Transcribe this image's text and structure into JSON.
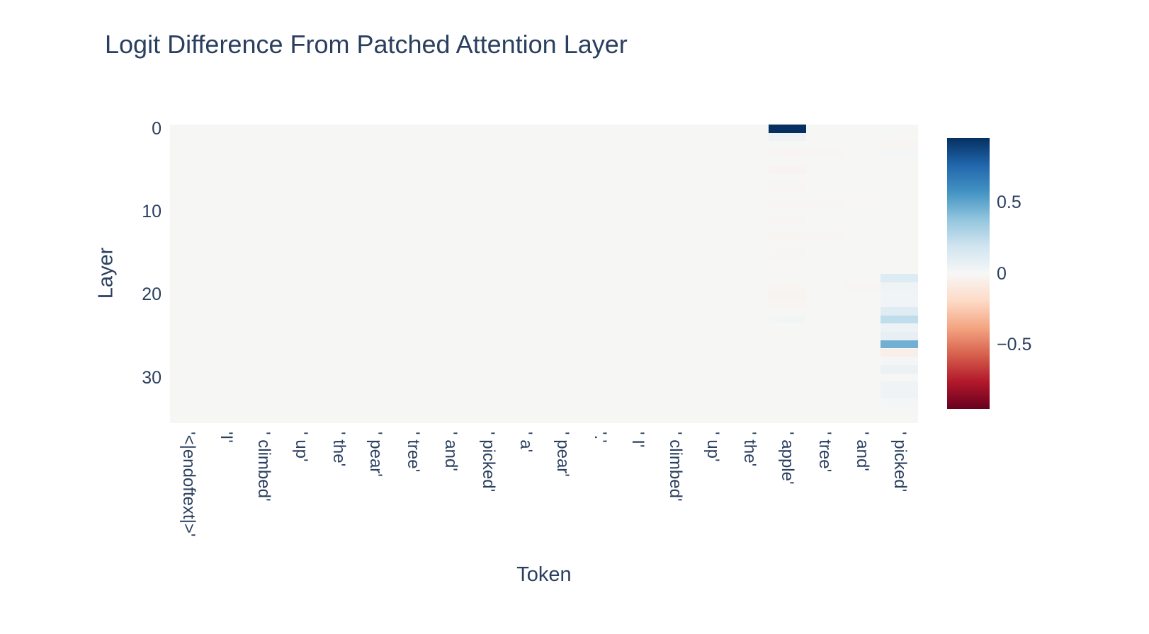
{
  "chart": {
    "font_color": "#2a3f5f",
    "plot_background": "#f6f6f5",
    "page_background": "#ffffff"
  },
  "chart_data": {
    "type": "heatmap",
    "title": "Logit Difference From Patched Attention Layer",
    "xlabel": "Token",
    "ylabel": "Layer",
    "colorscale": "RdBu",
    "zmin": -0.95,
    "zmax": 0.95,
    "n_layers": 36,
    "x_categories": [
      "'<|endoftext|>'",
      "'I'",
      "' climbed'",
      "' up'",
      "' the'",
      "' pear'",
      "' tree'",
      "' and'",
      "' picked'",
      "' a'",
      "' pear'",
      "'.'",
      "' I'",
      "' climbed'",
      "' up'",
      "' the'",
      "' apple'",
      "' tree'",
      "' and'",
      "' picked'"
    ],
    "y_ticks": [
      {
        "value": 0,
        "label": "0"
      },
      {
        "value": 10,
        "label": "10"
      },
      {
        "value": 20,
        "label": "20"
      },
      {
        "value": 30,
        "label": "30"
      }
    ],
    "colorbar_ticks": [
      {
        "value": 0.5,
        "label": "0.5"
      },
      {
        "value": 0,
        "label": "0"
      },
      {
        "value": -0.5,
        "label": "−0.5"
      }
    ],
    "default_value": 0,
    "cells_format": [
      "token_index",
      "layer",
      "value"
    ],
    "cells": [
      [
        16,
        0,
        0.95
      ],
      [
        16,
        1,
        0.04
      ],
      [
        16,
        3,
        -0.02
      ],
      [
        16,
        5,
        -0.025
      ],
      [
        16,
        7,
        -0.02
      ],
      [
        16,
        9,
        -0.02
      ],
      [
        16,
        11,
        -0.015
      ],
      [
        16,
        13,
        -0.02
      ],
      [
        16,
        15,
        -0.015
      ],
      [
        16,
        17,
        -0.01
      ],
      [
        16,
        19,
        -0.02
      ],
      [
        16,
        20,
        -0.025
      ],
      [
        16,
        21,
        -0.02
      ],
      [
        16,
        23,
        0.025
      ],
      [
        17,
        3,
        -0.015
      ],
      [
        17,
        9,
        -0.015
      ],
      [
        17,
        13,
        -0.015
      ],
      [
        18,
        9,
        -0.01
      ],
      [
        18,
        19,
        -0.015
      ],
      [
        19,
        2,
        -0.02
      ],
      [
        19,
        3,
        0.015
      ],
      [
        19,
        18,
        0.13
      ],
      [
        19,
        19,
        0.04
      ],
      [
        19,
        20,
        0.03
      ],
      [
        19,
        21,
        0.03
      ],
      [
        19,
        22,
        0.12
      ],
      [
        19,
        23,
        0.24
      ],
      [
        19,
        24,
        0.05
      ],
      [
        19,
        25,
        0.08
      ],
      [
        19,
        26,
        0.46
      ],
      [
        19,
        27,
        -0.06
      ],
      [
        19,
        28,
        0.02
      ],
      [
        19,
        29,
        0.06
      ],
      [
        19,
        31,
        0.04
      ],
      [
        19,
        32,
        0.04
      ],
      [
        19,
        33,
        0.02
      ]
    ]
  }
}
